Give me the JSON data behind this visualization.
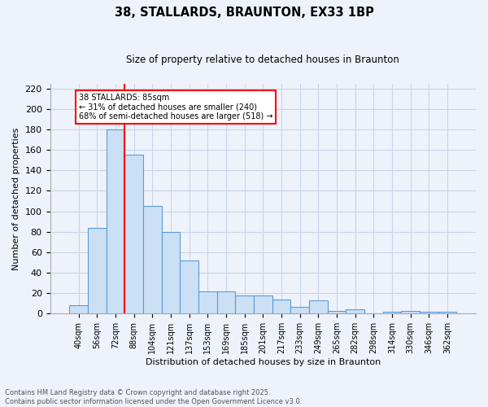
{
  "title": "38, STALLARDS, BRAUNTON, EX33 1BP",
  "subtitle": "Size of property relative to detached houses in Braunton",
  "xlabel": "Distribution of detached houses by size in Braunton",
  "ylabel": "Number of detached properties",
  "footer_line1": "Contains HM Land Registry data © Crown copyright and database right 2025.",
  "footer_line2": "Contains public sector information licensed under the Open Government Licence v3.0.",
  "bar_labels": [
    "40sqm",
    "56sqm",
    "72sqm",
    "88sqm",
    "104sqm",
    "121sqm",
    "137sqm",
    "153sqm",
    "169sqm",
    "185sqm",
    "201sqm",
    "217sqm",
    "233sqm",
    "249sqm",
    "265sqm",
    "282sqm",
    "298sqm",
    "314sqm",
    "330sqm",
    "346sqm",
    "362sqm"
  ],
  "bar_values": [
    8,
    84,
    180,
    155,
    105,
    80,
    52,
    22,
    22,
    18,
    18,
    14,
    7,
    13,
    3,
    4,
    0,
    2,
    3,
    2,
    2
  ],
  "bar_color": "#cce0f5",
  "bar_edge_color": "#5b9bd5",
  "grid_color": "#c8d4e8",
  "background_color": "#eef3fb",
  "annotation_box_text": "38 STALLARDS: 85sqm\n← 31% of detached houses are smaller (240)\n68% of semi-detached houses are larger (518) →",
  "annotation_box_color": "white",
  "annotation_box_edge_color": "red",
  "vline_color": "red",
  "vline_x_index": 2,
  "ylim": [
    0,
    225
  ],
  "yticks": [
    0,
    20,
    40,
    60,
    80,
    100,
    120,
    140,
    160,
    180,
    200,
    220
  ]
}
